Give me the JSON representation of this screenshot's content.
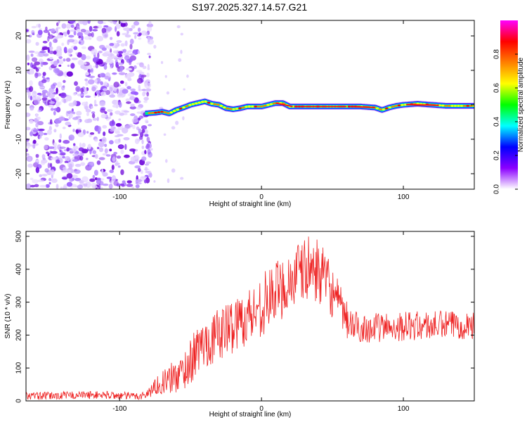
{
  "title": "S197.2025.327.14.57.G21",
  "chart_data": [
    {
      "type": "heatmap",
      "title": "S197.2025.327.14.57.G21",
      "xlabel": "Height of straight line (km)",
      "ylabel": "Frequency (Hz)",
      "xlim": [
        -166,
        150
      ],
      "ylim": [
        -24.5,
        24.5
      ],
      "xticks": [
        -100,
        0,
        100
      ],
      "yticks": [
        -20,
        -10,
        0,
        10,
        20
      ],
      "noise_region_x": [
        -166,
        -82
      ],
      "ridge": {
        "x": [
          -82,
          -75,
          -70,
          -65,
          -60,
          -55,
          -50,
          -45,
          -40,
          -35,
          -30,
          -25,
          -20,
          -15,
          -10,
          -5,
          0,
          5,
          10,
          15,
          20,
          25,
          30,
          40,
          50,
          60,
          70,
          80,
          85,
          90,
          95,
          100,
          110,
          120,
          130,
          140,
          150
        ],
        "freq": [
          -2.5,
          -2.3,
          -2.0,
          -2.5,
          -1.5,
          -0.8,
          0.0,
          0.5,
          1.0,
          0.3,
          0.0,
          -1.0,
          -1.3,
          -1.0,
          -0.5,
          -0.5,
          -0.5,
          0.0,
          0.5,
          0.5,
          -0.5,
          -0.5,
          -0.5,
          -0.5,
          -0.5,
          -0.5,
          -0.5,
          -0.8,
          -1.5,
          -0.8,
          -0.3,
          0.0,
          0.3,
          0.0,
          -0.3,
          -0.3,
          -0.3
        ]
      },
      "colorbar": {
        "label": "Normalized spectral amplitude",
        "range": [
          0.0,
          1.0
        ],
        "ticks": [
          "0.0",
          "0.2",
          "0.4",
          "0.6",
          "0.8"
        ],
        "colors": [
          "#ffffff",
          "#8b00ff",
          "#0000ff",
          "#00ffff",
          "#00ff00",
          "#ffff00",
          "#ff8000",
          "#ff0000",
          "#ff00ff"
        ]
      }
    },
    {
      "type": "line",
      "xlabel": "Height of straight line (km)",
      "ylabel": "SNR (10 * v/v)",
      "xlim": [
        -166,
        150
      ],
      "ylim": [
        0,
        515
      ],
      "xticks": [
        -100,
        0,
        100
      ],
      "yticks": [
        0,
        100,
        200,
        300,
        400,
        500
      ],
      "color": "#ee2222",
      "series": [
        {
          "x": [
            -166,
            -150,
            -130,
            -110,
            -95,
            -85,
            -80,
            -75,
            -70,
            -65,
            -60,
            -55,
            -50,
            -45,
            -40,
            -35,
            -30,
            -25,
            -20,
            -15,
            -10,
            -5,
            0,
            5,
            10,
            15,
            20,
            25,
            30,
            35,
            40,
            45,
            50,
            55,
            60,
            65,
            70,
            80,
            90,
            100,
            110,
            120,
            130,
            140,
            150
          ],
          "y": [
            15,
            15,
            18,
            18,
            15,
            15,
            22,
            45,
            55,
            65,
            75,
            90,
            120,
            155,
            175,
            185,
            205,
            215,
            230,
            245,
            255,
            270,
            290,
            310,
            330,
            345,
            365,
            380,
            395,
            405,
            395,
            365,
            330,
            285,
            245,
            225,
            222,
            222,
            225,
            227,
            228,
            228,
            230,
            232,
            232
          ],
          "noise_amplitude": [
            12,
            12,
            12,
            12,
            12,
            12,
            15,
            25,
            35,
            45,
            55,
            60,
            70,
            75,
            75,
            75,
            80,
            85,
            85,
            85,
            90,
            90,
            95,
            95,
            95,
            95,
            100,
            100,
            100,
            100,
            95,
            90,
            80,
            70,
            60,
            50,
            45,
            45,
            45,
            45,
            45,
            45,
            45,
            45,
            45
          ]
        }
      ]
    }
  ]
}
